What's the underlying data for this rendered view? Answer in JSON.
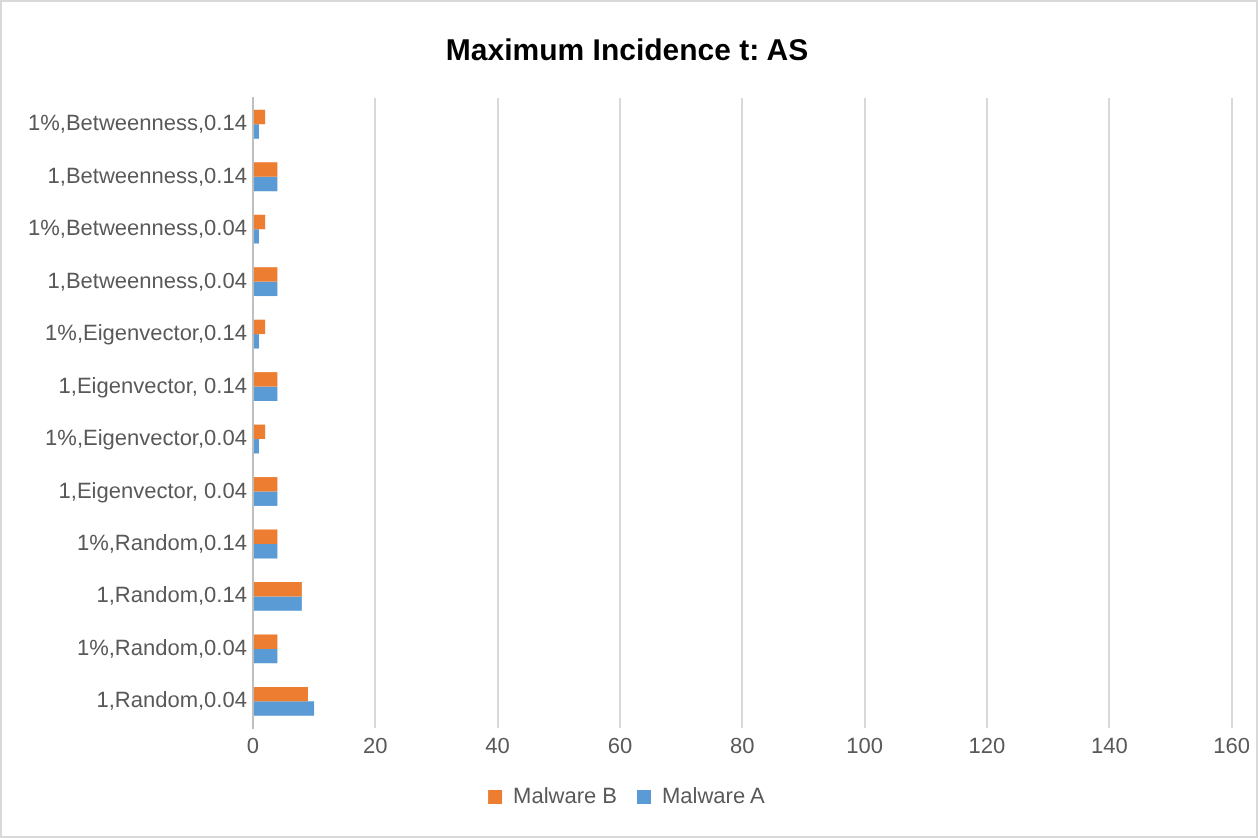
{
  "chart_data": {
    "type": "bar",
    "orientation": "horizontal",
    "title": "Maximum Incidence t: AS",
    "categories": [
      "1%,Betweenness,0.14",
      "1,Betweenness,0.14",
      "1%,Betweenness,0.04",
      "1,Betweenness,0.04",
      "1%,Eigenvector,0.14",
      "1,Eigenvector, 0.14",
      "1%,Eigenvector,0.04",
      "1,Eigenvector, 0.04",
      "1%,Random,0.14",
      "1,Random,0.14",
      "1%,Random,0.04",
      "1,Random,0.04"
    ],
    "series": [
      {
        "name": "Malware B",
        "color": "#ed7d31",
        "values": [
          2,
          4,
          2,
          4,
          2,
          4,
          2,
          4,
          4,
          8,
          4,
          9
        ]
      },
      {
        "name": "Malware A",
        "color": "#5b9bd5",
        "values": [
          1,
          4,
          1,
          4,
          1,
          4,
          1,
          4,
          4,
          8,
          4,
          10
        ]
      }
    ],
    "xlim": [
      0,
      160
    ],
    "xticks": [
      0,
      20,
      40,
      60,
      80,
      100,
      120,
      140,
      160
    ],
    "grid": "x",
    "legend": "bottom"
  }
}
